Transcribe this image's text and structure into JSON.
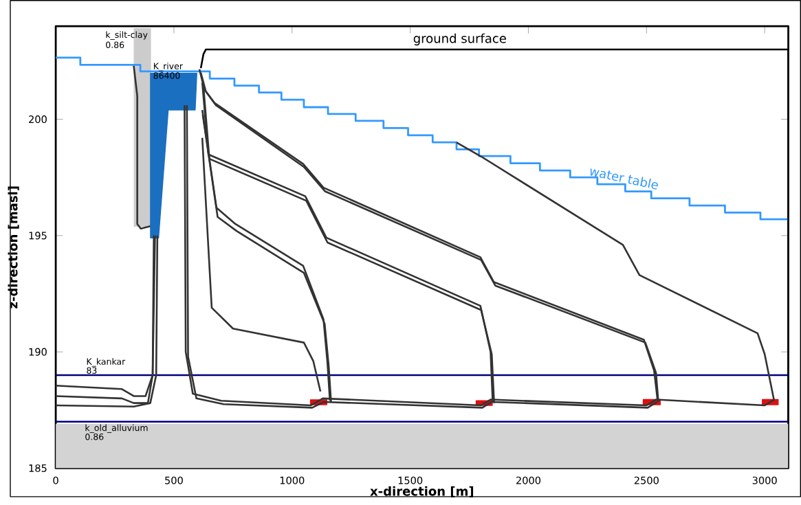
{
  "chart_data": {
    "type": "line",
    "xlabel": "x-direction [m]",
    "ylabel": "z-direction [masl]",
    "xlim": [
      0,
      3100
    ],
    "ylim": [
      185,
      204
    ],
    "xticks": [
      0,
      500,
      1000,
      1500,
      2000,
      2500,
      3000
    ],
    "yticks": [
      185,
      190,
      195,
      200
    ],
    "grid": false,
    "series": [
      {
        "type": "area",
        "color": "#cccccc",
        "x": [
          332,
          401,
          401,
          332
        ],
        "values": [
          203.9,
          203.9,
          195.4,
          195.4
        ]
      },
      {
        "type": "line",
        "color": "#000080",
        "x": [
          0,
          3100
        ],
        "values": [
          189,
          189
        ]
      },
      {
        "type": "line",
        "color": "#000080",
        "x": [
          0,
          3100
        ],
        "values": [
          187,
          187
        ]
      },
      {
        "type": "area",
        "color": "#1a6fc0",
        "x": [
          401,
          597,
          590,
          476,
          435,
          401
        ],
        "values": [
          201.98,
          201.98,
          200.4,
          200.4,
          194.9,
          194.9
        ]
      },
      {
        "type": "step",
        "color": "#3399ff",
        "x": [
          0,
          104,
          358,
          652,
          756,
          860,
          955,
          1050,
          1152,
          1269,
          1387,
          1491,
          1595,
          1696,
          1791,
          1924,
          2049,
          2177,
          2292,
          2410,
          2520,
          2682,
          2832,
          2982,
          3100
        ],
        "values": [
          202.65,
          202.34,
          202.06,
          201.75,
          201.45,
          201.15,
          200.84,
          200.52,
          200.23,
          199.93,
          199.62,
          199.31,
          199.01,
          198.71,
          198.42,
          198.11,
          197.8,
          197.5,
          197.21,
          196.9,
          196.6,
          196.29,
          195.99,
          195.7,
          195.7
        ]
      },
      {
        "type": "line",
        "color": "#000000",
        "x": [
          614,
          625,
          635,
          3100,
          3100
        ],
        "values": [
          202.2,
          202.8,
          203,
          203,
          187
        ]
      },
      {
        "color": "#333333",
        "x": [
          1696,
          1800,
          2400,
          2470,
          2970,
          3000,
          3040
        ],
        "values": [
          199.0,
          198.4,
          194.6,
          193.3,
          190.8,
          189.9,
          187.9
        ]
      },
      {
        "type": "line",
        "color": "#333333",
        "x": [
          608,
          629,
          672,
          1047,
          1133,
          1797,
          1854,
          2489,
          2532,
          2547
        ],
        "values": [
          202.15,
          201.28,
          200.7,
          198.08,
          197.06,
          194.07,
          193.0,
          190.52,
          189.2,
          187.9
        ]
      },
      {
        "type": "line",
        "color": "#333333",
        "x": [
          614,
          635,
          678,
          1050,
          1140,
          1800,
          1860,
          2495,
          2540,
          2550
        ],
        "values": [
          202.0,
          201.2,
          200.6,
          197.95,
          196.9,
          193.95,
          192.85,
          190.4,
          189.1,
          187.85
        ]
      },
      {
        "type": "line",
        "color": "#333333",
        "x": [
          620,
          646,
          1056,
          1145,
          1797,
          1840,
          1849
        ],
        "values": [
          201.57,
          198.49,
          196.69,
          194.91,
          191.98,
          190.0,
          187.85
        ]
      },
      {
        "type": "line",
        "color": "#333333",
        "x": [
          625,
          650,
          1060,
          1150,
          1800,
          1845,
          1855
        ],
        "values": [
          201.4,
          198.3,
          196.5,
          194.7,
          191.8,
          189.9,
          187.8
        ]
      },
      {
        "type": "line",
        "color": "#333333",
        "x": [
          620,
          680,
          760,
          1047,
          1133,
          1150,
          1160
        ],
        "values": [
          200.4,
          196.2,
          195.5,
          193.7,
          191.4,
          189.5,
          187.9
        ]
      },
      {
        "type": "line",
        "color": "#333333",
        "x": [
          622,
          685,
          765,
          1050,
          1138,
          1155,
          1165
        ],
        "values": [
          200.2,
          195.8,
          195.2,
          193.4,
          191.2,
          189.4,
          187.85
        ]
      },
      {
        "type": "line",
        "color": "#333333",
        "x": [
          620,
          660,
          750,
          1050,
          1090,
          1120
        ],
        "values": [
          199.2,
          191.9,
          191.0,
          190.4,
          189.6,
          188.3
        ]
      },
      {
        "type": "line",
        "color": "#333333",
        "x": [
          545,
          550,
          580,
          700,
          1080,
          1130,
          1800,
          1840,
          2500,
          2540,
          3000,
          3040
        ],
        "values": [
          200.6,
          190.0,
          188.2,
          187.9,
          187.7,
          188.0,
          187.7,
          187.95,
          187.7,
          187.95,
          187.7,
          187.95
        ]
      },
      {
        "type": "line",
        "color": "#333333",
        "x": [
          555,
          560,
          595,
          710,
          1085,
          1135,
          1805,
          1845,
          2505,
          2545
        ],
        "values": [
          200.6,
          189.8,
          188.0,
          187.75,
          187.6,
          187.85,
          187.6,
          187.85,
          187.6,
          187.85
        ]
      },
      {
        "type": "line",
        "color": "#333333",
        "x": [
          0,
          280,
          330,
          380,
          410,
          415
        ],
        "values": [
          188.55,
          188.4,
          188.1,
          188.1,
          189.0,
          195.0
        ]
      },
      {
        "type": "line",
        "color": "#333333",
        "x": [
          0,
          280,
          330,
          390,
          410,
          420
        ],
        "values": [
          188.1,
          188.0,
          187.8,
          187.8,
          189.0,
          195.0
        ]
      },
      {
        "type": "line",
        "color": "#333333",
        "x": [
          0,
          330,
          400,
          425,
          430
        ],
        "values": [
          187.7,
          187.65,
          187.8,
          189.0,
          195.0
        ]
      },
      {
        "type": "line",
        "color": "#333333",
        "x": [
          330,
          345,
          345,
          360,
          400
        ],
        "values": [
          202.3,
          201.0,
          195.5,
          195.3,
          195.4
        ]
      },
      {
        "type": "area",
        "color": "#dd1111",
        "x": [
          1078,
          1147,
          1147,
          1078
        ],
        "values": [
          187.94,
          187.94,
          187.73,
          187.73
        ]
      },
      {
        "type": "area",
        "color": "#dd1111",
        "x": [
          1779,
          1847,
          1847,
          1779
        ],
        "values": [
          187.9,
          187.9,
          187.7,
          187.7
        ]
      },
      {
        "type": "area",
        "color": "#dd1111",
        "x": [
          2486,
          2558,
          2558,
          2486
        ],
        "values": [
          187.95,
          187.95,
          187.73,
          187.73
        ]
      },
      {
        "type": "area",
        "color": "#dd1111",
        "x": [
          2990,
          3057,
          3057,
          2990
        ],
        "values": [
          187.95,
          187.95,
          187.73,
          187.73
        ]
      }
    ],
    "bands": [
      {
        "axis": "y",
        "from": 185,
        "to": 186.9,
        "color": "#d3d3d3"
      }
    ],
    "annotations": [
      {
        "text": "ground surface",
        "x": 1710,
        "y": 203
      },
      {
        "text": "water table",
        "x": 2240,
        "y": 197.5
      },
      "k_silt-clay",
      "0.86",
      "K_river",
      "86400",
      "K_kankar",
      "83",
      "k_old_alluvium",
      "0.86"
    ]
  }
}
